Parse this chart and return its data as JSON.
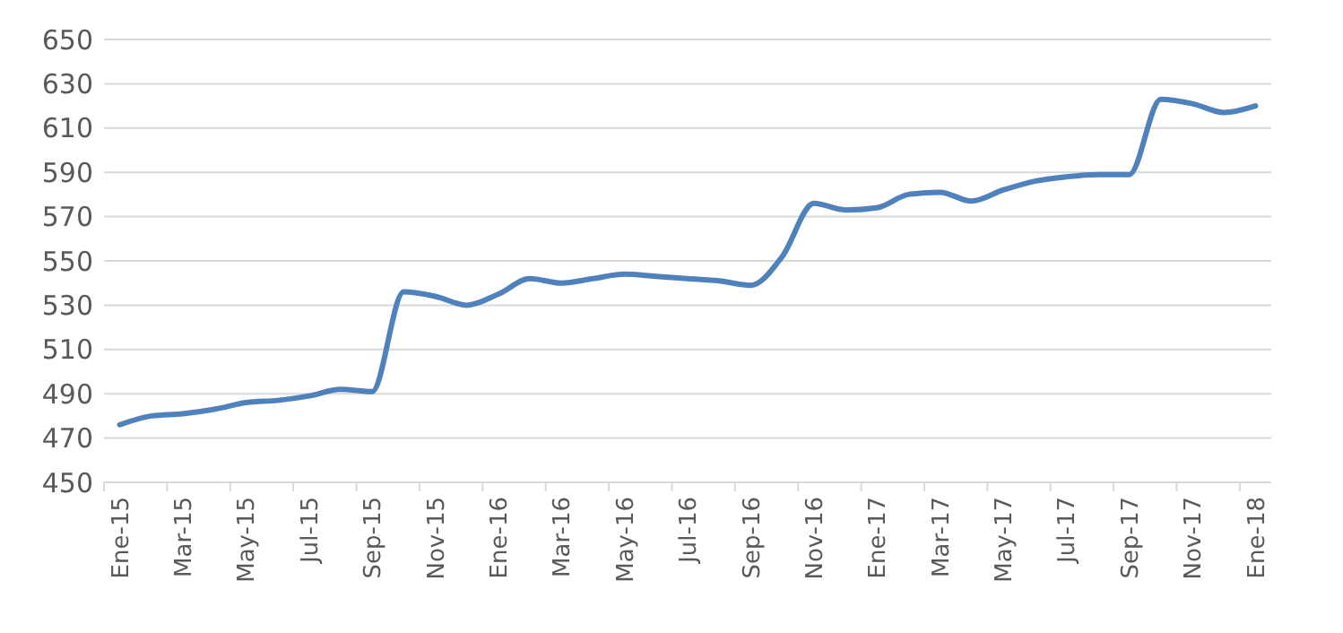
{
  "chart_data": {
    "type": "line",
    "categories": [
      "Ene-15",
      null,
      "Mar-15",
      null,
      "May-15",
      null,
      "Jul-15",
      null,
      "Sep-15",
      null,
      "Nov-15",
      null,
      "Ene-16",
      null,
      "Mar-16",
      null,
      "May-16",
      null,
      "Jul-16",
      null,
      "Sep-16",
      null,
      "Nov-16",
      null,
      "Ene-17",
      null,
      "Mar-17",
      null,
      "May-17",
      null,
      "Jul-17",
      null,
      "Sep-17",
      null,
      "Nov-17",
      null,
      "Ene-18"
    ],
    "series": [
      {
        "color": "#4f81bd",
        "values": [
          476,
          480,
          481,
          483,
          486,
          487,
          489,
          492,
          491,
          536,
          534,
          530,
          535,
          542,
          540,
          542,
          544,
          543,
          542,
          541,
          539,
          552,
          576,
          573,
          574,
          580,
          581,
          577,
          582,
          586,
          588,
          589,
          589,
          623,
          621,
          617,
          620
        ]
      }
    ],
    "ylim": [
      450,
      650
    ],
    "yticks": [
      450,
      470,
      490,
      510,
      530,
      550,
      570,
      590,
      610,
      630,
      650
    ],
    "grid": "y",
    "marker": "none",
    "line_style": "solid"
  }
}
